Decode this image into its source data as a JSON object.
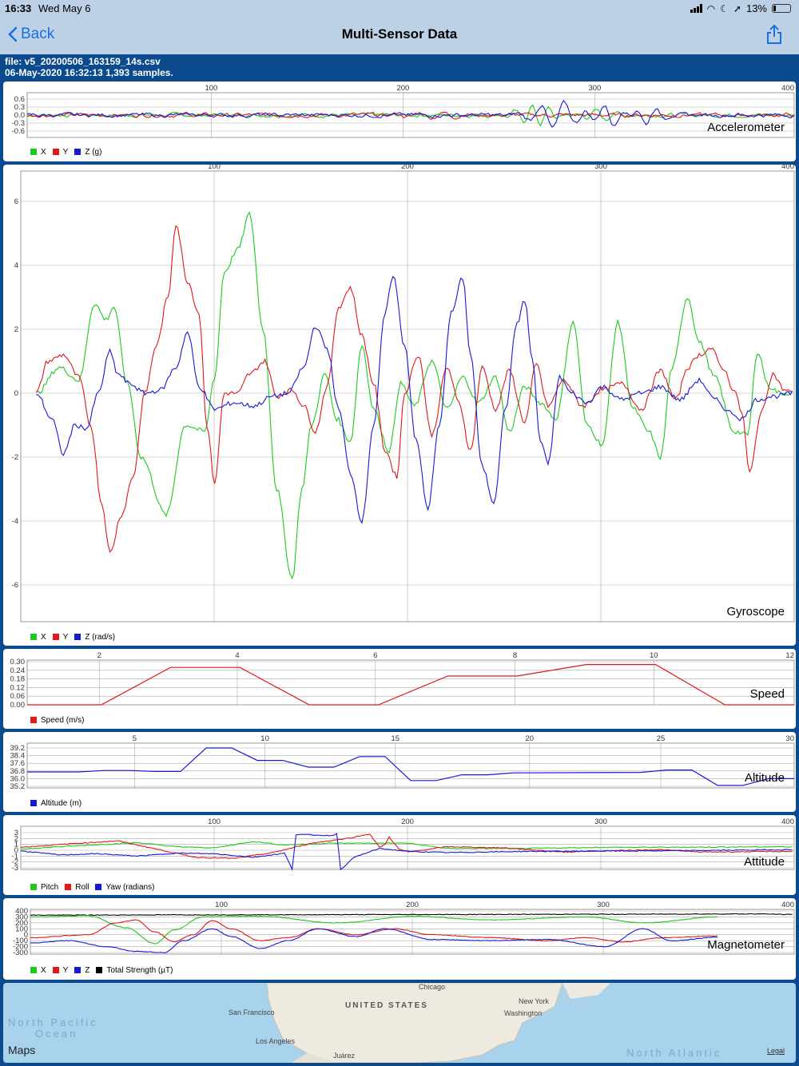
{
  "status": {
    "time": "16:33",
    "date": "Wed May 6",
    "battery": "13%"
  },
  "nav": {
    "back_label": "Back",
    "title": "Multi-Sensor Data"
  },
  "file": {
    "name": "file: v5_20200506_163159_14s.csv",
    "summary": "06-May-2020 16:32:13   1,393 samples."
  },
  "panels": {
    "accel": {
      "title": "Accelerometer",
      "xticks": [
        "100",
        "200",
        "300",
        "400"
      ],
      "yticks": [
        "0.6",
        "0.3",
        "0.0",
        "-0.3",
        "-0.6"
      ],
      "legend": [
        {
          "label": "X",
          "color": "#1ec81e"
        },
        {
          "label": "Y",
          "color": "#e01818"
        },
        {
          "label": "Z (g)",
          "color": "#1818d8"
        }
      ]
    },
    "gyro": {
      "title": "Gyroscope",
      "xticks": [
        "100",
        "200",
        "300",
        "400"
      ],
      "yticks": [
        "6",
        "4",
        "2",
        "0",
        "-2",
        "-4",
        "-6"
      ],
      "legend": [
        {
          "label": "X",
          "color": "#1ec81e"
        },
        {
          "label": "Y",
          "color": "#e01818"
        },
        {
          "label": "Z (rad/s)",
          "color": "#1818d8"
        }
      ]
    },
    "speed": {
      "title": "Speed",
      "xticks": [
        "2",
        "4",
        "6",
        "8",
        "10",
        "12"
      ],
      "yticks": [
        "0.30",
        "0.24",
        "0.18",
        "0.12",
        "0.06",
        "0.00"
      ],
      "legend": [
        {
          "label": "Speed (m/s)",
          "color": "#e01818"
        }
      ]
    },
    "altitude": {
      "title": "Altitude",
      "xticks": [
        "5",
        "10",
        "15",
        "20",
        "25",
        "30"
      ],
      "yticks": [
        "39.2",
        "38.4",
        "37.6",
        "36.8",
        "36.0",
        "35.2"
      ],
      "legend": [
        {
          "label": "Altitude (m)",
          "color": "#1818d8"
        }
      ]
    },
    "attitude": {
      "title": "Attitude",
      "xticks": [
        "100",
        "200",
        "300",
        "400"
      ],
      "yticks": [
        "3",
        "2",
        "1",
        "0",
        "-1",
        "-2",
        "-3"
      ],
      "legend": [
        {
          "label": "Pitch",
          "color": "#1ec81e"
        },
        {
          "label": "Roll",
          "color": "#e01818"
        },
        {
          "label": "Yaw (radians)",
          "color": "#1818d8"
        }
      ]
    },
    "magnet": {
      "title": "Magnetometer",
      "xticks": [
        "100",
        "200",
        "300",
        "400"
      ],
      "yticks": [
        "400",
        "300",
        "200",
        "100",
        "0",
        "-100",
        "-200",
        "-300"
      ],
      "legend": [
        {
          "label": "X",
          "color": "#1ec81e"
        },
        {
          "label": "Y",
          "color": "#e01818"
        },
        {
          "label": "Z",
          "color": "#1818d8"
        },
        {
          "label": "Total Strength (µT)",
          "color": "#000000"
        }
      ]
    }
  },
  "map": {
    "labels": [
      "North Pacific",
      "Ocean",
      "UNITED STATES",
      "Chicago",
      "New York",
      "Washington",
      "San Francisco",
      "Los Angeles",
      "Juárez",
      "North Atlantic"
    ],
    "brand": "Maps",
    "legal": "Legal"
  }
}
